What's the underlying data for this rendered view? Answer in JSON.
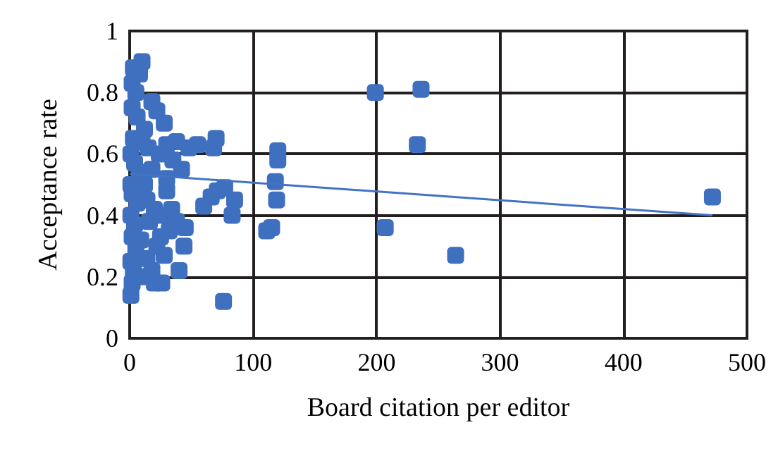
{
  "chart_data": {
    "type": "scatter",
    "xlabel": "Board citation per editor",
    "ylabel": "Acceptance rate",
    "xlim": [
      0,
      500
    ],
    "xticks": [
      0,
      100,
      200,
      300,
      400,
      500
    ],
    "ylim": [
      0,
      1
    ],
    "yticks": [
      0,
      0.2,
      0.4,
      0.6,
      0.8,
      1
    ],
    "grid": true,
    "marker": "square",
    "series": [
      {
        "color": "#3f6fbf",
        "x": [
          199,
          236,
          233,
          207,
          264,
          472,
          120,
          120,
          118,
          119,
          115,
          111,
          76,
          83,
          85,
          77,
          71,
          66,
          60,
          70,
          68,
          55,
          48,
          42,
          38,
          45,
          44,
          40,
          34,
          30,
          28,
          22,
          18,
          10,
          8,
          3,
          2,
          5,
          2,
          6,
          12,
          3,
          1,
          4,
          8,
          1,
          2,
          6,
          1,
          4,
          2,
          5,
          1,
          3,
          2,
          1,
          10,
          18,
          20,
          26,
          14,
          22,
          25,
          16,
          20,
          26,
          12,
          18,
          24,
          30,
          35,
          15,
          10,
          30,
          38,
          32,
          28,
          14,
          9
        ],
        "values": [
          0.8,
          0.81,
          0.63,
          0.36,
          0.27,
          0.46,
          0.61,
          0.58,
          0.51,
          0.45,
          0.36,
          0.35,
          0.12,
          0.4,
          0.45,
          0.49,
          0.48,
          0.46,
          0.43,
          0.65,
          0.62,
          0.63,
          0.62,
          0.55,
          0.64,
          0.36,
          0.3,
          0.22,
          0.42,
          0.48,
          0.7,
          0.74,
          0.77,
          0.9,
          0.86,
          0.88,
          0.83,
          0.8,
          0.75,
          0.72,
          0.68,
          0.65,
          0.6,
          0.57,
          0.54,
          0.5,
          0.47,
          0.44,
          0.4,
          0.37,
          0.33,
          0.29,
          0.25,
          0.22,
          0.18,
          0.14,
          0.2,
          0.22,
          0.18,
          0.18,
          0.26,
          0.3,
          0.33,
          0.38,
          0.42,
          0.4,
          0.5,
          0.55,
          0.6,
          0.63,
          0.58,
          0.62,
          0.64,
          0.52,
          0.38,
          0.35,
          0.27,
          0.45,
          0.32
        ]
      },
      {
        "type": "line",
        "color": "#4472c4",
        "marker": "none",
        "x": [
          0,
          472
        ],
        "values": [
          0.535,
          0.4
        ]
      }
    ]
  }
}
